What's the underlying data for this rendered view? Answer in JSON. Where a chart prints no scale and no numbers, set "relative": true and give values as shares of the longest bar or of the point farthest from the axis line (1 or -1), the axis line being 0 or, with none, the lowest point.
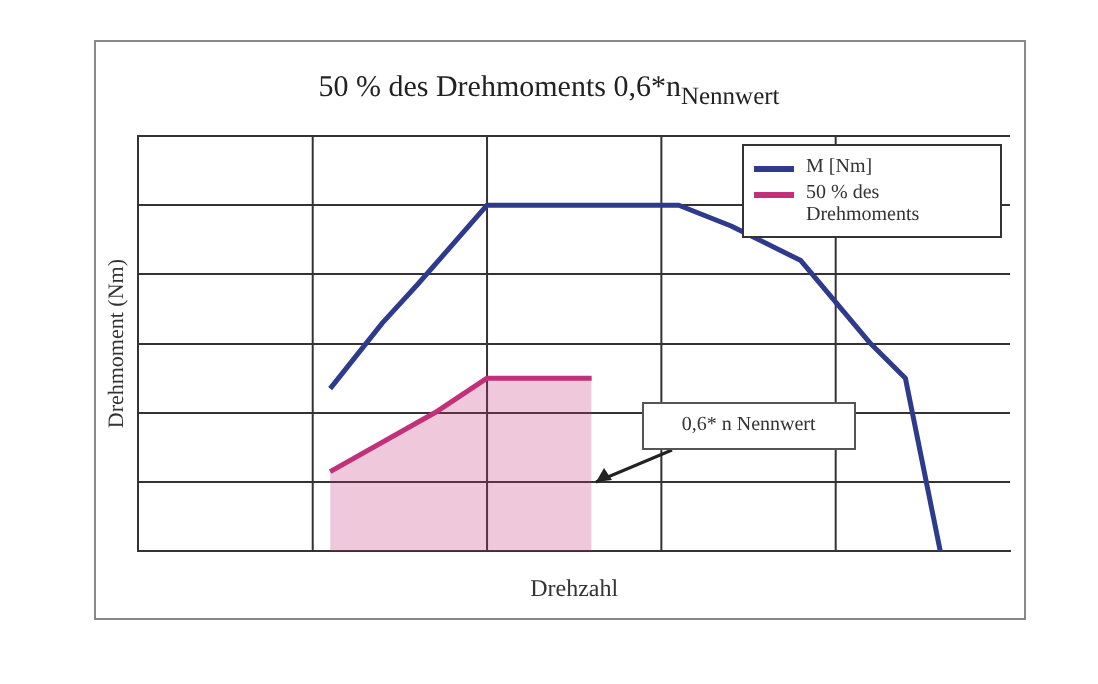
{
  "chart_data": {
    "type": "line",
    "title": "50 % des Drehmoments 0,6*n$_{Nennwert}$",
    "xlabel": "Drehzahl",
    "ylabel": "Drehmoment (Nm)",
    "relative": true,
    "grid": true,
    "legend": "top right",
    "marker": "none",
    "line_style": "solid",
    "categories": [
      null,
      null,
      null,
      null,
      null,
      null,
      null,
      null,
      null,
      null,
      null,
      null,
      null,
      null,
      null,
      null,
      null,
      null,
      null,
      null,
      null,
      null,
      null,
      null,
      null,
      null,
      null,
      null,
      null,
      null,
      null,
      null,
      null,
      null,
      null,
      null,
      null,
      null,
      null,
      null,
      null,
      null,
      null,
      null,
      null,
      null,
      null,
      null,
      null,
      null,
      null
    ],
    "series": [
      {
        "name": "M [Nm]",
        "color": "#2e3a8c",
        "type": "line",
        "values": [
          null,
          null,
          null,
          null,
          null,
          null,
          null,
          null,
          null,
          null,
          null,
          0.47,
          null,
          null,
          0.66,
          null,
          0.77,
          null,
          null,
          null,
          1.0,
          null,
          null,
          null,
          null,
          null,
          null,
          null,
          null,
          null,
          null,
          1.0,
          null,
          null,
          0.94,
          null,
          null,
          null,
          0.84,
          null,
          null,
          null,
          0.6,
          null,
          0.5,
          null,
          0,
          null,
          null,
          null,
          null
        ]
      },
      {
        "name": "50 % des Drehmoments",
        "color": "#c2307a",
        "type": "area",
        "values": [
          null,
          null,
          null,
          null,
          null,
          null,
          null,
          null,
          null,
          null,
          null,
          0.23,
          null,
          null,
          null,
          null,
          null,
          0.4,
          null,
          null,
          0.5,
          null,
          null,
          null,
          null,
          null,
          0.5,
          null,
          null,
          null,
          null,
          null,
          null,
          null,
          null,
          null,
          null,
          null,
          null,
          null,
          null,
          null,
          null,
          null,
          null,
          null,
          null,
          null,
          null,
          null,
          null
        ]
      }
    ],
    "annotations": [
      "0,6* n Nennwert"
    ]
  }
}
